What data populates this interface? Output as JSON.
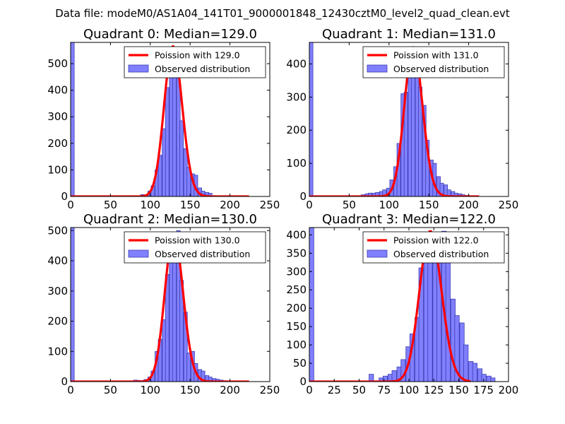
{
  "figure": {
    "suptitle": "Data file: modeM0/AS1A04_141T01_9000001848_12430cztM0_level2_quad_clean.evt"
  },
  "colors": {
    "hist_fill": "#8080ff",
    "hist_edge": "#3b3bb3",
    "poisson_line": "#ff0000"
  },
  "chart_data": [
    {
      "type": "bar",
      "title": "Quadrant 0: Median=129.0",
      "legend": {
        "position": "top-right",
        "entries": [
          "Poission with 129.0",
          "Observed distribution"
        ]
      },
      "xlim": [
        0,
        250
      ],
      "ylim": [
        0,
        580
      ],
      "xticks": [
        0,
        50,
        100,
        150,
        200,
        250
      ],
      "yticks": [
        0,
        100,
        200,
        300,
        400,
        500
      ],
      "median": 129.0,
      "peak": 565,
      "histogram": {
        "bin_width": 4.5,
        "edges_start": [
          0,
          74,
          79,
          88,
          92,
          97,
          101,
          106,
          110,
          115,
          119,
          124,
          128,
          133,
          137,
          142,
          146,
          151,
          155,
          160,
          164,
          169,
          173,
          178,
          182,
          187,
          191,
          196
        ],
        "counts": [
          580,
          3,
          2,
          7,
          3,
          20,
          40,
          100,
          155,
          255,
          410,
          535,
          545,
          525,
          285,
          180,
          110,
          85,
          80,
          32,
          20,
          15,
          12,
          3,
          2,
          2,
          1,
          1
        ]
      },
      "poisson_range": [
        0,
        224
      ]
    },
    {
      "type": "bar",
      "title": "Quadrant 1: Median=131.0",
      "legend": {
        "position": "top-right",
        "entries": [
          "Poission with 131.0",
          "Observed distribution"
        ]
      },
      "xlim": [
        0,
        250
      ],
      "ylim": [
        0,
        465
      ],
      "xticks": [
        0,
        50,
        100,
        150,
        200,
        250
      ],
      "yticks": [
        0,
        100,
        200,
        300,
        400
      ],
      "median": 131.0,
      "peak": 450,
      "histogram": {
        "bin_width": 4.5,
        "edges_start": [
          0,
          33,
          60,
          65,
          70,
          74,
          79,
          83,
          88,
          92,
          97,
          101,
          106,
          110,
          115,
          119,
          124,
          128,
          133,
          137,
          142,
          146,
          151,
          155,
          160,
          164,
          169,
          173,
          178,
          182,
          187,
          191,
          196
        ],
        "counts": [
          465,
          2,
          2,
          5,
          8,
          10,
          10,
          12,
          15,
          20,
          25,
          50,
          90,
          160,
          310,
          315,
          435,
          420,
          395,
          330,
          275,
          170,
          110,
          100,
          60,
          40,
          35,
          20,
          15,
          10,
          8,
          5,
          3
        ]
      },
      "poisson_range": [
        0,
        213
      ]
    },
    {
      "type": "bar",
      "title": "Quadrant 2: Median=130.0",
      "legend": {
        "position": "top-right",
        "entries": [
          "Poission with 130.0",
          "Observed distribution"
        ]
      },
      "xlim": [
        0,
        250
      ],
      "ylim": [
        0,
        510
      ],
      "xticks": [
        0,
        50,
        100,
        150,
        200,
        250
      ],
      "yticks": [
        0,
        100,
        200,
        300,
        400,
        500
      ],
      "median": 130.0,
      "peak": 490,
      "histogram": {
        "bin_width": 4.5,
        "edges_start": [
          0,
          79,
          83,
          88,
          92,
          97,
          101,
          106,
          110,
          115,
          119,
          124,
          128,
          133,
          137,
          142,
          146,
          151,
          155,
          160,
          164,
          169,
          173,
          178,
          182,
          187,
          191,
          196
        ],
        "counts": [
          510,
          5,
          4,
          3,
          7,
          15,
          35,
          100,
          140,
          205,
          355,
          490,
          435,
          500,
          335,
          230,
          95,
          100,
          60,
          40,
          35,
          20,
          15,
          10,
          8,
          5,
          3,
          2
        ]
      },
      "poisson_range": [
        0,
        224
      ]
    },
    {
      "type": "bar",
      "title": "Quadrant 3: Median=122.0",
      "legend": {
        "position": "top-right",
        "entries": [
          "Poission with 122.0",
          "Observed distribution"
        ]
      },
      "xlim": [
        0,
        200
      ],
      "ylim": [
        0,
        420
      ],
      "xticks": [
        0,
        25,
        50,
        75,
        100,
        125,
        150,
        175,
        200
      ],
      "yticks": [
        0,
        50,
        100,
        150,
        200,
        250,
        300,
        350,
        400
      ],
      "median": 122.0,
      "peak": 410,
      "histogram": {
        "bin_width": 4.5,
        "edges_start": [
          0,
          60,
          70,
          74,
          79,
          83,
          88,
          92,
          97,
          101,
          106,
          110,
          115,
          119,
          124,
          128,
          133,
          137,
          142,
          146,
          151,
          155,
          160,
          164,
          169,
          173,
          178,
          182
        ],
        "counts": [
          420,
          20,
          10,
          15,
          20,
          30,
          40,
          60,
          95,
          130,
          175,
          310,
          365,
          325,
          385,
          325,
          410,
          325,
          225,
          180,
          160,
          100,
          55,
          50,
          35,
          20,
          15,
          10
        ]
      },
      "poisson_range": [
        0,
        162
      ]
    }
  ]
}
